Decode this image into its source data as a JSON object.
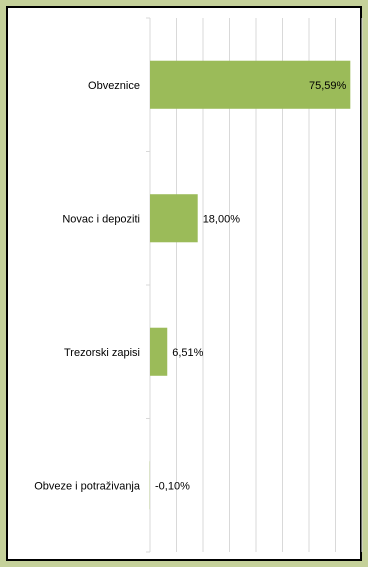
{
  "chart_data": {
    "type": "bar",
    "orientation": "horizontal",
    "categories": [
      "Obveznice",
      "Novac i depoziti",
      "Trezorski zapisi",
      "Obveze i potraživanja"
    ],
    "values": [
      75.59,
      18.0,
      6.51,
      -0.1
    ],
    "data_labels": [
      "75,59%",
      "18,00%",
      "6,51%",
      "-0,10%"
    ],
    "xlim": [
      0,
      80
    ],
    "grid": "vertical",
    "bar_color": "#9bbb59",
    "legend": "none"
  }
}
